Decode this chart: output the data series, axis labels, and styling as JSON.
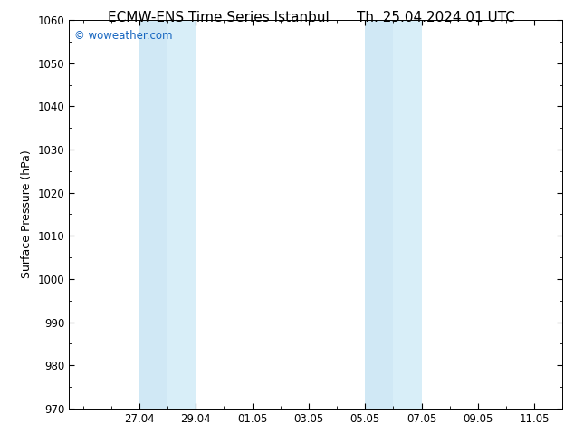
{
  "title_left": "ECMW-ENS Time Series Istanbul",
  "title_right": "Th. 25.04.2024 01 UTC",
  "ylabel": "Surface Pressure (hPa)",
  "ylim": [
    970,
    1060
  ],
  "yticks": [
    970,
    980,
    990,
    1000,
    1010,
    1020,
    1030,
    1040,
    1050,
    1060
  ],
  "xtick_labels": [
    "27.04",
    "29.04",
    "01.05",
    "03.05",
    "05.05",
    "07.05",
    "09.05",
    "11.05"
  ],
  "xtick_positions": [
    2,
    4,
    6,
    8,
    10,
    12,
    14,
    16
  ],
  "xmin": -0.5,
  "xmax": 17,
  "shaded_regions": [
    {
      "xstart": 1,
      "xend": 3
    },
    {
      "xstart": 3,
      "xend": 5
    },
    {
      "xstart": 9,
      "xend": 11
    },
    {
      "xstart": 11,
      "xend": 12
    }
  ],
  "shaded_color_1": "#d6eaf8",
  "shaded_color_2": "#cce4f4",
  "shaded_color_3": "#d6eaf8",
  "shaded_color_4": "#cce4f4",
  "bg_color": "#ffffff",
  "plot_bg_color": "#ffffff",
  "watermark_text": "© woweather.com",
  "watermark_color": "#1565C0",
  "title_fontsize": 11,
  "tick_fontsize": 8.5,
  "ylabel_fontsize": 9,
  "fig_width": 6.34,
  "fig_height": 4.9,
  "dpi": 100
}
